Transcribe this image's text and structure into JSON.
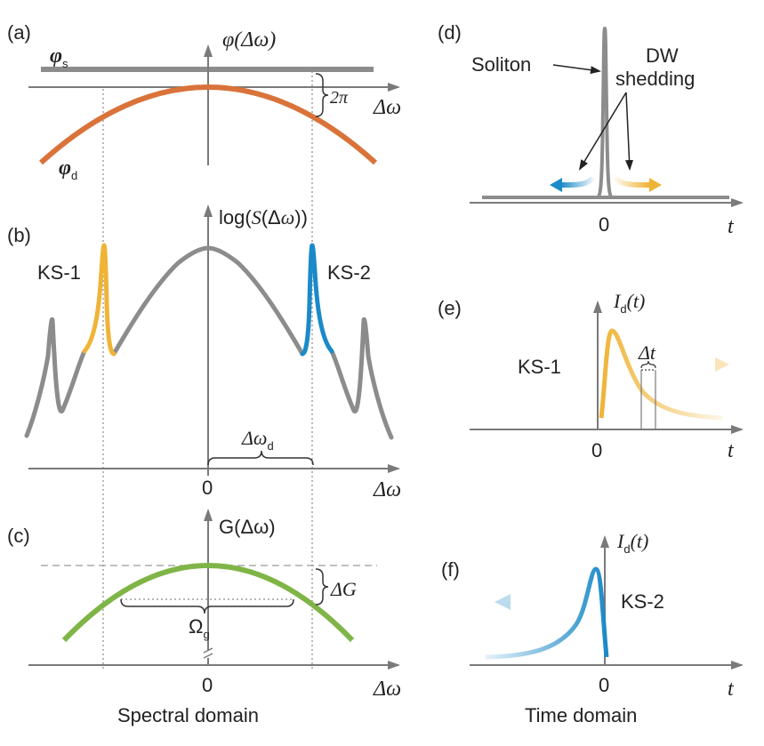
{
  "panels": {
    "a": {
      "tag": "(a)",
      "phi_s": "φ",
      "phi_s_sub": "s",
      "phi_d": "φ",
      "phi_d_sub": "d",
      "yaxis": "φ(Δω)",
      "xaxis": "Δω",
      "gap": "2π"
    },
    "b": {
      "tag": "(b)",
      "yaxis": "log(S(Δω))",
      "ks1": "KS-1",
      "ks2": "KS-2",
      "zero": "0",
      "xaxis": "Δω",
      "brace": "Δω",
      "brace_sub": "d"
    },
    "c": {
      "tag": "(c)",
      "yaxis": "G(Δω)",
      "delta_g": "ΔG",
      "omega": "Ω",
      "omega_sub": "g",
      "zero": "0",
      "xaxis": "Δω"
    },
    "d": {
      "tag": "(d)",
      "soliton": "Soliton",
      "dw1": "DW",
      "dw2": "shedding",
      "zero": "0",
      "xaxis": "t"
    },
    "e": {
      "tag": "(e)",
      "yaxis": "I",
      "yaxis_sub": "d",
      "yaxis_arg": "(t)",
      "label": "KS-1",
      "dt": "Δt",
      "zero": "0",
      "xaxis": "t"
    },
    "f": {
      "tag": "(f)",
      "yaxis": "I",
      "yaxis_sub": "d",
      "yaxis_arg": "(t)",
      "label": "KS-2",
      "zero": "0",
      "xaxis": "t"
    }
  },
  "footer": {
    "left": "Spectral domain",
    "right": "Time domain"
  },
  "colors": {
    "orange": "#d9733a",
    "gray": "#8c8c8c",
    "yellow": "#efb437",
    "blue": "#1b8ac8",
    "green": "#7fb547"
  }
}
